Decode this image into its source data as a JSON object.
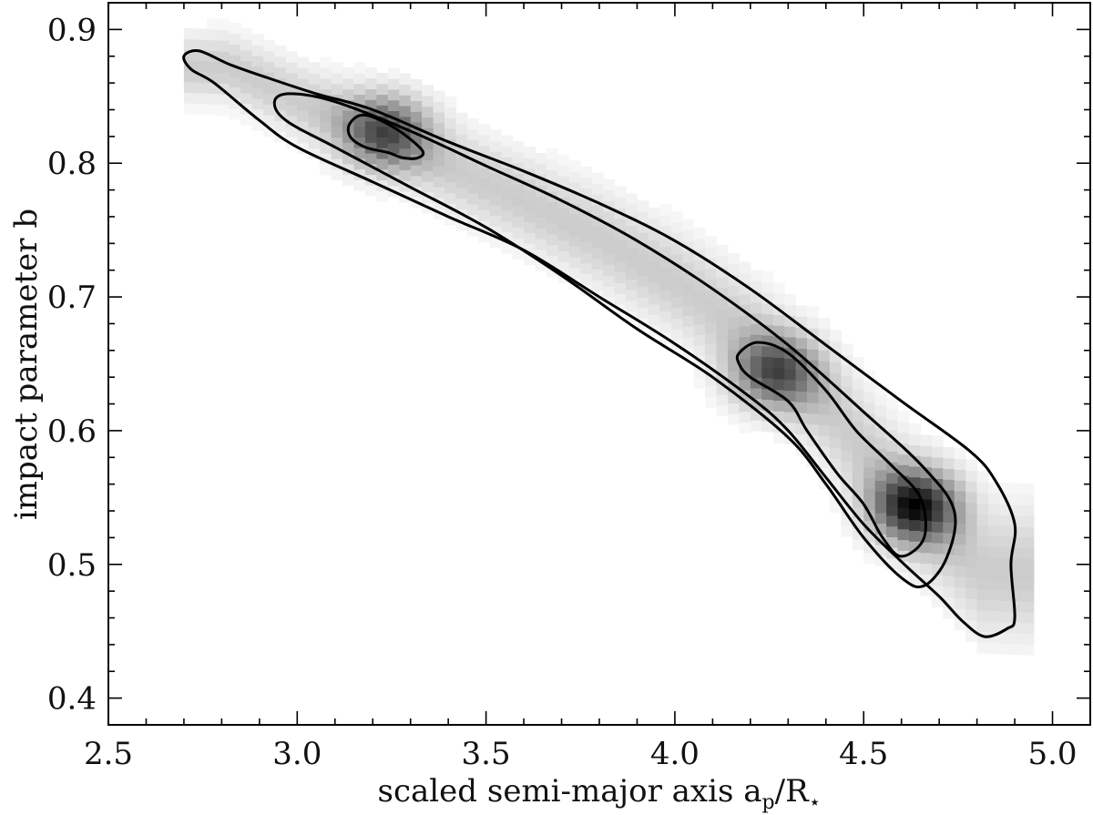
{
  "chart_data": {
    "type": "heatmap",
    "xlabel": "scaled semi-major axis",
    "xlabel_math": {
      "a": "a",
      "a_sub": "p",
      "slash": "/",
      "r": "R",
      "r_sub": "⋆"
    },
    "ylabel": "impact parameter b",
    "xlim": [
      2.5,
      5.1
    ],
    "ylim": [
      0.38,
      0.92
    ],
    "xticks": [
      "2.5",
      "3.0",
      "3.5",
      "4.0",
      "4.5",
      "5.0"
    ],
    "yticks": [
      "0.4",
      "0.5",
      "0.6",
      "0.7",
      "0.8",
      "0.9"
    ],
    "grid": false,
    "colormap": [
      "#ffffff",
      "#000000"
    ],
    "ridge": [
      [
        2.8,
        0.868
      ],
      [
        3.0,
        0.842
      ],
      [
        3.2,
        0.818
      ],
      [
        3.4,
        0.792
      ],
      [
        3.6,
        0.766
      ],
      [
        3.8,
        0.738
      ],
      [
        4.0,
        0.705
      ],
      [
        4.2,
        0.665
      ],
      [
        4.4,
        0.61
      ],
      [
        4.6,
        0.545
      ],
      [
        4.8,
        0.49
      ]
    ],
    "density_peaks": [
      {
        "x": 4.62,
        "y": 0.54,
        "weight": 1.0
      },
      {
        "x": 4.25,
        "y": 0.64,
        "weight": 0.72
      },
      {
        "x": 3.22,
        "y": 0.82,
        "weight": 0.7
      }
    ],
    "contours": [
      {
        "level": "outer",
        "points": [
          [
            2.7,
            0.88
          ],
          [
            2.74,
            0.884
          ],
          [
            2.82,
            0.874
          ],
          [
            2.92,
            0.864
          ],
          [
            3.05,
            0.852
          ],
          [
            3.2,
            0.84
          ],
          [
            3.4,
            0.816
          ],
          [
            3.6,
            0.794
          ],
          [
            3.8,
            0.77
          ],
          [
            4.0,
            0.742
          ],
          [
            4.2,
            0.706
          ],
          [
            4.4,
            0.664
          ],
          [
            4.6,
            0.622
          ],
          [
            4.78,
            0.585
          ],
          [
            4.85,
            0.562
          ],
          [
            4.9,
            0.53
          ],
          [
            4.89,
            0.5
          ],
          [
            4.9,
            0.46
          ],
          [
            4.88,
            0.452
          ],
          [
            4.82,
            0.446
          ],
          [
            4.76,
            0.458
          ],
          [
            4.7,
            0.476
          ],
          [
            4.6,
            0.502
          ],
          [
            4.5,
            0.53
          ],
          [
            4.4,
            0.565
          ],
          [
            4.3,
            0.6
          ],
          [
            4.2,
            0.625
          ],
          [
            4.0,
            0.665
          ],
          [
            3.8,
            0.7
          ],
          [
            3.6,
            0.735
          ],
          [
            3.4,
            0.76
          ],
          [
            3.2,
            0.786
          ],
          [
            3.0,
            0.812
          ],
          [
            2.9,
            0.832
          ],
          [
            2.78,
            0.86
          ],
          [
            2.72,
            0.87
          ]
        ]
      },
      {
        "level": "middle",
        "points": [
          [
            2.94,
            0.846
          ],
          [
            2.98,
            0.852
          ],
          [
            3.1,
            0.846
          ],
          [
            3.3,
            0.824
          ],
          [
            3.5,
            0.798
          ],
          [
            3.7,
            0.772
          ],
          [
            3.9,
            0.742
          ],
          [
            4.1,
            0.706
          ],
          [
            4.3,
            0.664
          ],
          [
            4.5,
            0.614
          ],
          [
            4.66,
            0.572
          ],
          [
            4.74,
            0.54
          ],
          [
            4.72,
            0.505
          ],
          [
            4.66,
            0.484
          ],
          [
            4.6,
            0.49
          ],
          [
            4.5,
            0.52
          ],
          [
            4.4,
            0.56
          ],
          [
            4.3,
            0.595
          ],
          [
            4.1,
            0.64
          ],
          [
            3.9,
            0.676
          ],
          [
            3.7,
            0.716
          ],
          [
            3.5,
            0.752
          ],
          [
            3.3,
            0.782
          ],
          [
            3.1,
            0.812
          ],
          [
            2.97,
            0.832
          ]
        ]
      },
      {
        "level": "inner",
        "points": [
          [
            3.14,
            0.83
          ],
          [
            3.18,
            0.836
          ],
          [
            3.26,
            0.826
          ],
          [
            3.33,
            0.81
          ],
          [
            3.32,
            0.804
          ],
          [
            3.28,
            0.804
          ],
          [
            3.24,
            0.808
          ],
          [
            3.18,
            0.812
          ],
          [
            3.14,
            0.82
          ]
        ]
      },
      {
        "level": "inner",
        "points": [
          [
            4.17,
            0.658
          ],
          [
            4.22,
            0.666
          ],
          [
            4.3,
            0.658
          ],
          [
            4.4,
            0.63
          ],
          [
            4.48,
            0.6
          ],
          [
            4.57,
            0.575
          ],
          [
            4.65,
            0.55
          ],
          [
            4.66,
            0.52
          ],
          [
            4.6,
            0.506
          ],
          [
            4.55,
            0.52
          ],
          [
            4.5,
            0.545
          ],
          [
            4.43,
            0.568
          ],
          [
            4.35,
            0.6
          ],
          [
            4.3,
            0.622
          ],
          [
            4.2,
            0.64
          ],
          [
            4.17,
            0.65
          ]
        ]
      }
    ]
  }
}
